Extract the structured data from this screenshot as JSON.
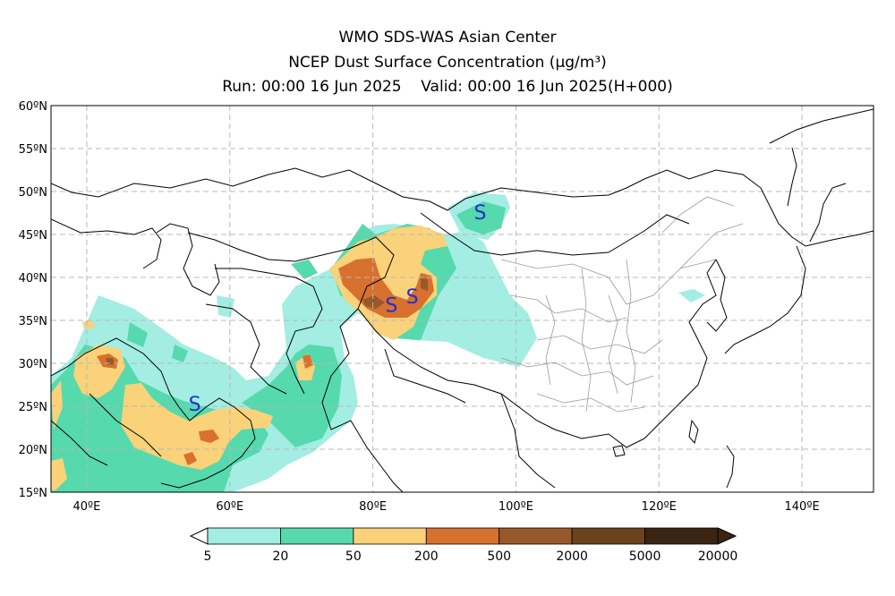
{
  "header": {
    "line1": "WMO SDS-WAS Asian Center",
    "line2": "NCEP Dust Surface Concentration (μg/m³)",
    "line3": "Run: 00:00 16 Jun 2025    Valid: 00:00 16 Jun 2025(H+000)"
  },
  "map": {
    "lon_range": [
      35,
      150
    ],
    "lat_range": [
      15,
      60
    ],
    "lon_ticks": [
      {
        "value": 40,
        "label": "40ºE"
      },
      {
        "value": 60,
        "label": "60ºE"
      },
      {
        "value": 80,
        "label": "80ºE"
      },
      {
        "value": 100,
        "label": "100ºE"
      },
      {
        "value": 120,
        "label": "120ºE"
      },
      {
        "value": 140,
        "label": "140ºE"
      }
    ],
    "lat_ticks": [
      {
        "value": 60,
        "label": "60ºN"
      },
      {
        "value": 55,
        "label": "55ºN"
      },
      {
        "value": 50,
        "label": "50ºN"
      },
      {
        "value": 45,
        "label": "45ºN"
      },
      {
        "value": 40,
        "label": "40ºN"
      },
      {
        "value": 35,
        "label": "35ºN"
      },
      {
        "value": 30,
        "label": "30ºN"
      },
      {
        "value": 25,
        "label": "25ºN"
      },
      {
        "value": 20,
        "label": "20ºN"
      },
      {
        "value": 15,
        "label": "15ºN"
      }
    ],
    "grid": true,
    "markers": [
      {
        "label": "S",
        "lon": 95.0,
        "lat": 47.6,
        "color": "#1f2fd6"
      },
      {
        "label": "S",
        "lon": 82.6,
        "lat": 36.8,
        "color": "#1f2fd6"
      },
      {
        "label": "S",
        "lon": 85.5,
        "lat": 37.8,
        "color": "#1f2fd6"
      },
      {
        "label": "S",
        "lon": 55.1,
        "lat": 25.3,
        "color": "#1f2fd6"
      }
    ]
  },
  "colorbar": {
    "colors": [
      "#a3ede3",
      "#56d9ad",
      "#f9d27a",
      "#d8702e",
      "#97592a",
      "#6b431d",
      "#3b2413"
    ],
    "labels": [
      "5",
      "20",
      "50",
      "200",
      "500",
      "2000",
      "5000",
      "20000"
    ],
    "colors_named": {
      "c5": "#a3ede3",
      "c20": "#56d9ad",
      "c50": "#f9d27a",
      "c200": "#d8702e",
      "c500": "#97592a",
      "c2000": "#6b431d",
      "c5000": "#3b2413"
    }
  }
}
